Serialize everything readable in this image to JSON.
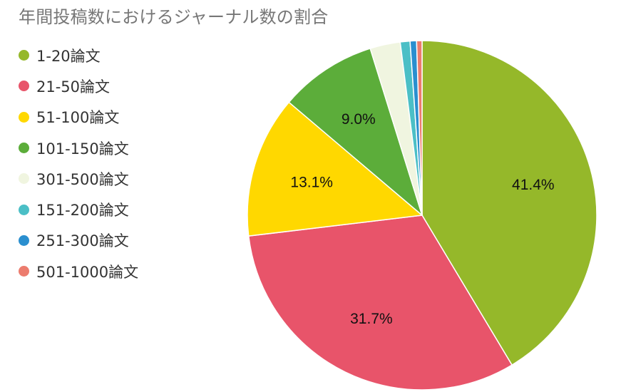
{
  "chart_data": {
    "type": "pie",
    "title": "年間投稿数におけるジャーナル数の割合",
    "legend_position": "left",
    "slices": [
      {
        "label": "1-20論文",
        "value": 41.4,
        "color": "#95b82a",
        "show_label": true
      },
      {
        "label": "21-50論文",
        "value": 31.7,
        "color": "#e8546a",
        "show_label": true
      },
      {
        "label": "51-100論文",
        "value": 13.1,
        "color": "#ffd800",
        "show_label": true
      },
      {
        "label": "101-150論文",
        "value": 9.0,
        "color": "#5cad3a",
        "show_label": true
      },
      {
        "label": "301-500論文",
        "value": 2.8,
        "color": "#f0f5e0",
        "show_label": false
      },
      {
        "label": "151-200論文",
        "value": 0.9,
        "color": "#4bbfc6",
        "show_label": false
      },
      {
        "label": "251-300論文",
        "value": 0.6,
        "color": "#2a8fcf",
        "show_label": false
      },
      {
        "label": "501-1000論文",
        "value": 0.5,
        "color": "#ec7c6e",
        "show_label": false
      }
    ]
  }
}
